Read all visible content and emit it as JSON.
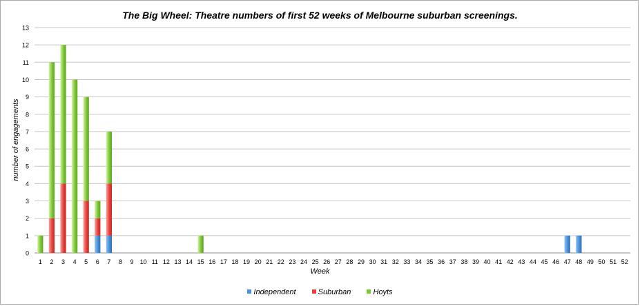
{
  "chart_data": {
    "type": "bar",
    "stacked": true,
    "title": "The Big Wheel: Theatre numbers of first 52 weeks of Melbourne suburban screenings.",
    "xlabel": "Week",
    "ylabel": "number of engagements",
    "ylim": [
      0,
      13
    ],
    "yticks": [
      "0",
      "1",
      "2",
      "3",
      "4",
      "5",
      "6",
      "7",
      "8",
      "9",
      "10",
      "11",
      "12",
      "13"
    ],
    "grid": true,
    "legend_position": "bottom",
    "categories": [
      "1",
      "2",
      "3",
      "4",
      "5",
      "6",
      "7",
      "8",
      "9",
      "10",
      "11",
      "12",
      "13",
      "14",
      "15",
      "16",
      "17",
      "18",
      "19",
      "20",
      "21",
      "22",
      "23",
      "24",
      "25",
      "26",
      "27",
      "28",
      "29",
      "30",
      "31",
      "32",
      "33",
      "34",
      "35",
      "36",
      "37",
      "38",
      "39",
      "40",
      "41",
      "42",
      "43",
      "44",
      "45",
      "46",
      "47",
      "48",
      "49",
      "50",
      "51",
      "52"
    ],
    "series": [
      {
        "name": "Independent",
        "color": "#4a90d9",
        "values": [
          0,
          0,
          0,
          0,
          0,
          1,
          1,
          0,
          0,
          0,
          0,
          0,
          0,
          0,
          0,
          0,
          0,
          0,
          0,
          0,
          0,
          0,
          0,
          0,
          0,
          0,
          0,
          0,
          0,
          0,
          0,
          0,
          0,
          0,
          0,
          0,
          0,
          0,
          0,
          0,
          0,
          0,
          0,
          0,
          0,
          0,
          1,
          1,
          0,
          0,
          0,
          0
        ]
      },
      {
        "name": "Suburban",
        "color": "#e8403a",
        "values": [
          0,
          2,
          4,
          0,
          3,
          1,
          3,
          0,
          0,
          0,
          0,
          0,
          0,
          0,
          0,
          0,
          0,
          0,
          0,
          0,
          0,
          0,
          0,
          0,
          0,
          0,
          0,
          0,
          0,
          0,
          0,
          0,
          0,
          0,
          0,
          0,
          0,
          0,
          0,
          0,
          0,
          0,
          0,
          0,
          0,
          0,
          0,
          0,
          0,
          0,
          0,
          0
        ]
      },
      {
        "name": "Hoyts",
        "color": "#7cc734",
        "values": [
          1,
          9,
          8,
          10,
          6,
          1,
          3,
          0,
          0,
          0,
          0,
          0,
          0,
          0,
          1,
          0,
          0,
          0,
          0,
          0,
          0,
          0,
          0,
          0,
          0,
          0,
          0,
          0,
          0,
          0,
          0,
          0,
          0,
          0,
          0,
          0,
          0,
          0,
          0,
          0,
          0,
          0,
          0,
          0,
          0,
          0,
          0,
          0,
          0,
          0,
          0,
          0
        ]
      }
    ]
  }
}
